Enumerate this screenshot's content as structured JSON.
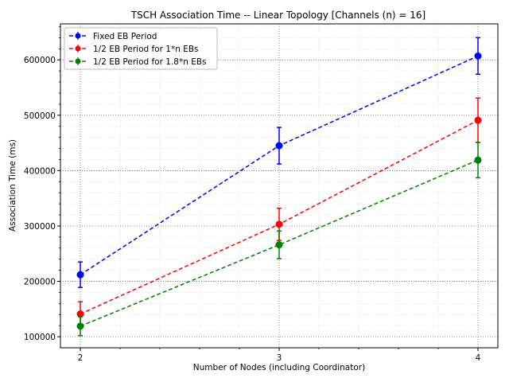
{
  "chart_data": {
    "type": "line",
    "title": "TSCH Association Time -- Linear Topology  [Channels (n) = 16]",
    "xlabel": "Number of Nodes (including Coordinator)",
    "ylabel": "Association Time (ms)",
    "x": [
      2,
      3,
      4
    ],
    "xlim": [
      1.9,
      4.1
    ],
    "ylim": [
      80000,
      665000
    ],
    "xticks": [
      "2",
      "3",
      "4"
    ],
    "yticks": [
      100000,
      200000,
      300000,
      400000,
      500000,
      600000
    ],
    "ytick_labels": [
      "100000",
      "200000",
      "300000",
      "400000",
      "500000",
      "600000"
    ],
    "grid": true,
    "legend_position": "top-left",
    "series": [
      {
        "name": "Fixed EB Period",
        "color": "#0000ff",
        "values": [
          212000,
          445000,
          607000
        ],
        "errors": [
          23000,
          33000,
          33000
        ]
      },
      {
        "name": "1/2 EB Period for 1*n EBs",
        "color": "#ff0000",
        "values": [
          141000,
          303000,
          491000
        ],
        "errors": [
          22000,
          29000,
          40000
        ]
      },
      {
        "name": "1/2 EB Period for 1.8*n EBs",
        "color": "#008000",
        "values": [
          119000,
          266000,
          419000
        ],
        "errors": [
          17000,
          25000,
          32000
        ]
      }
    ]
  }
}
